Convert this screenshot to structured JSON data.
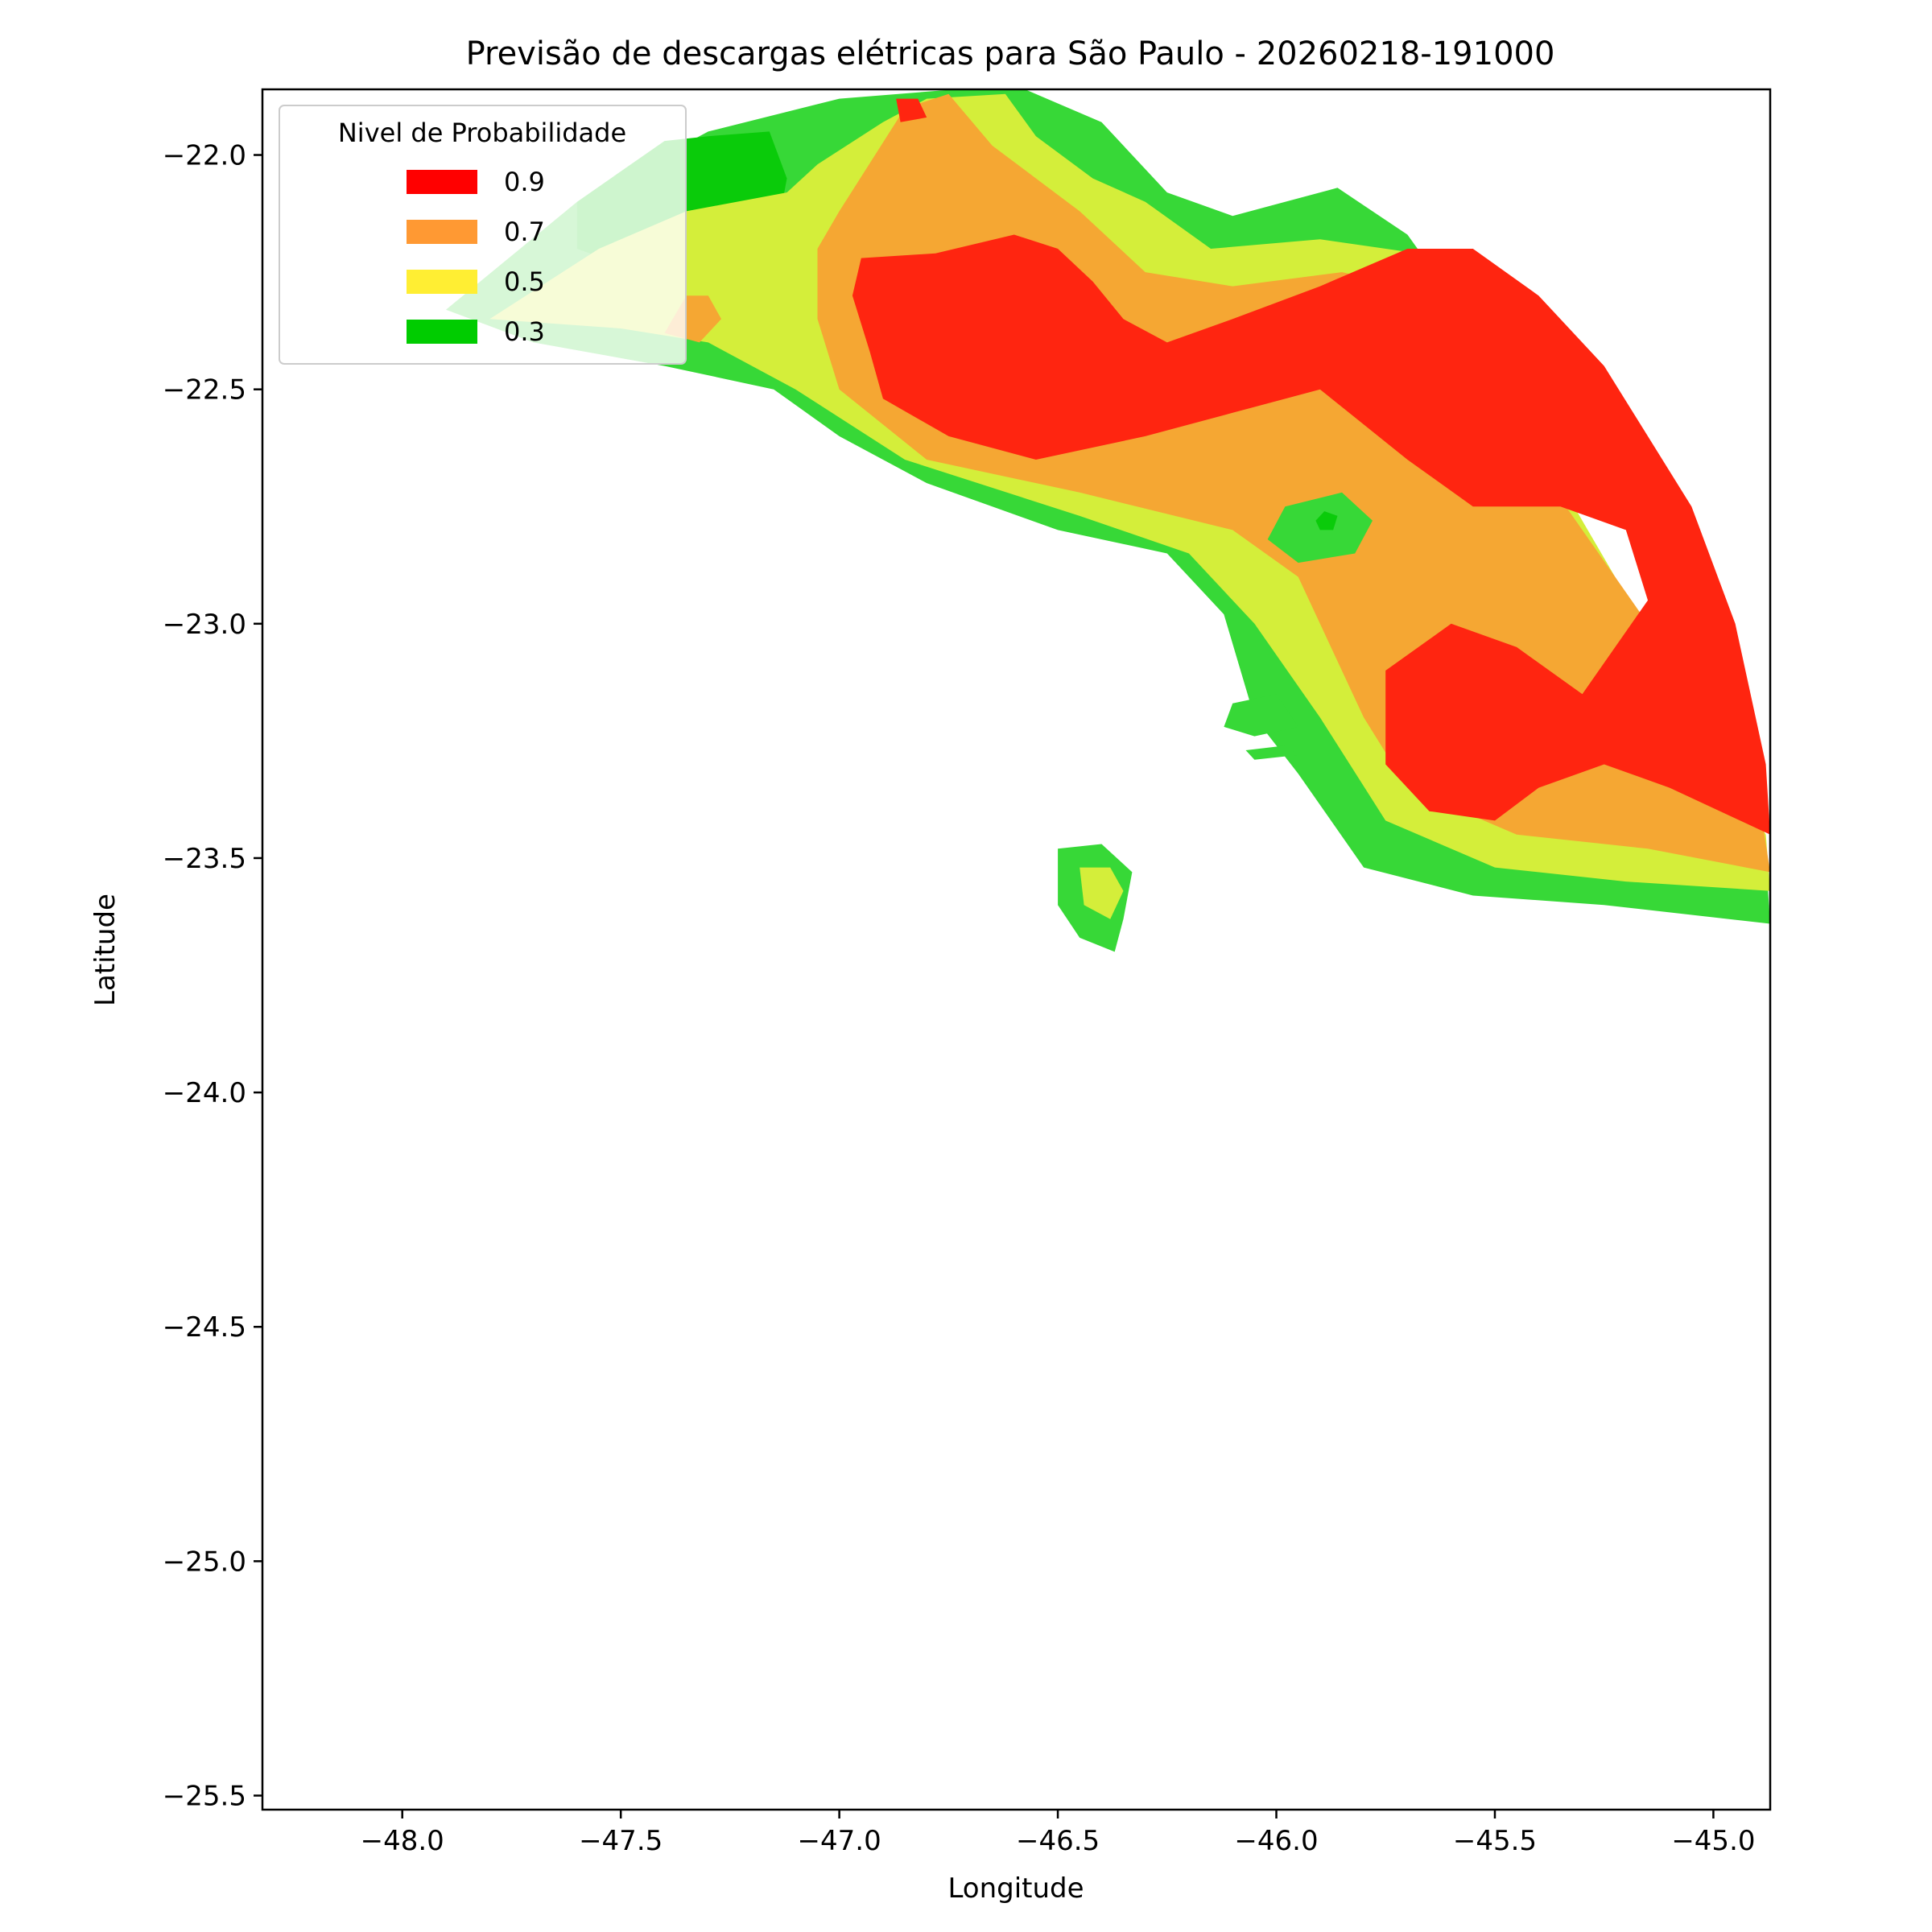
{
  "chart_data": {
    "type": "heatmap",
    "subtype": "filled-contour-map",
    "title": "Previsão de descargas elétricas para São Paulo - 20260218-191000",
    "xlabel": "Longitude",
    "ylabel": "Latitude",
    "xlim": [
      -48.32,
      -44.87
    ],
    "ylim": [
      -25.53,
      -21.86
    ],
    "x_ticks": [
      -48.0,
      -47.5,
      -47.0,
      -46.5,
      -46.0,
      -45.5,
      -45.0
    ],
    "y_ticks": [
      -22.0,
      -22.5,
      -23.0,
      -23.5,
      -24.0,
      -24.5,
      -25.0,
      -25.5
    ],
    "x_tick_labels": [
      "−48.0",
      "−47.5",
      "−47.0",
      "−46.5",
      "−46.0",
      "−45.5",
      "−45.0"
    ],
    "y_tick_labels": [
      "−22.0",
      "−22.5",
      "−23.0",
      "−23.5",
      "−24.0",
      "−24.5",
      "−25.0",
      "−25.5"
    ],
    "grid": false,
    "legend": {
      "title": "Nivel de Probabilidade",
      "placement": "upper-left",
      "entries": [
        {
          "label": "0.9",
          "color": "#ff0000"
        },
        {
          "label": "0.7",
          "color": "#ff9933"
        },
        {
          "label": "0.5",
          "color": "#ffee33"
        },
        {
          "label": "0.3",
          "color": "#00cc00"
        }
      ]
    },
    "fill_colors": {
      "0.9": "#ff2510",
      "0.7": "#f5a733",
      "0.5": "#d4ee3a",
      "0.3": "#37d837",
      "0.3-dark": "#0acb0a"
    },
    "regions": [
      {
        "level": "0.3",
        "points": [
          [
            -47.9,
            -22.33
          ],
          [
            -47.6,
            -22.1
          ],
          [
            -47.3,
            -21.95
          ],
          [
            -47.0,
            -21.88
          ],
          [
            -46.6,
            -21.85
          ],
          [
            -46.4,
            -21.93
          ],
          [
            -46.25,
            -22.08
          ],
          [
            -46.1,
            -22.13
          ],
          [
            -45.86,
            -22.07
          ],
          [
            -45.7,
            -22.17
          ],
          [
            -45.6,
            -22.3
          ],
          [
            -45.5,
            -22.5
          ],
          [
            -45.4,
            -22.8
          ],
          [
            -45.1,
            -23.2
          ],
          [
            -44.88,
            -23.5
          ],
          [
            -44.87,
            -23.64
          ],
          [
            -45.25,
            -23.6
          ],
          [
            -45.55,
            -23.58
          ],
          [
            -45.8,
            -23.52
          ],
          [
            -45.95,
            -23.32
          ],
          [
            -46.05,
            -23.2
          ],
          [
            -46.12,
            -22.98
          ],
          [
            -46.25,
            -22.85
          ],
          [
            -46.5,
            -22.8
          ],
          [
            -46.8,
            -22.7
          ],
          [
            -47.0,
            -22.6
          ],
          [
            -47.15,
            -22.5
          ],
          [
            -47.4,
            -22.45
          ],
          [
            -47.7,
            -22.4
          ]
        ]
      },
      {
        "level": "0.3",
        "points": [
          [
            -46.5,
            -23.48
          ],
          [
            -46.4,
            -23.47
          ],
          [
            -46.33,
            -23.53
          ],
          [
            -46.35,
            -23.63
          ],
          [
            -46.37,
            -23.7
          ],
          [
            -46.45,
            -23.67
          ],
          [
            -46.5,
            -23.6
          ]
        ]
      },
      {
        "level": "0.3",
        "points": [
          [
            -46.1,
            -23.17
          ],
          [
            -46.0,
            -23.15
          ],
          [
            -45.95,
            -23.22
          ],
          [
            -46.05,
            -23.24
          ],
          [
            -46.12,
            -23.22
          ]
        ]
      },
      {
        "level": "0.3",
        "points": [
          [
            -46.07,
            -23.27
          ],
          [
            -45.98,
            -23.26
          ],
          [
            -45.95,
            -23.28
          ],
          [
            -46.05,
            -23.29
          ]
        ]
      },
      {
        "level": "0.3-dark",
        "points": [
          [
            -47.6,
            -22.1
          ],
          [
            -47.4,
            -21.97
          ],
          [
            -47.3,
            -21.96
          ],
          [
            -47.16,
            -21.95
          ],
          [
            -47.12,
            -22.05
          ],
          [
            -47.15,
            -22.2
          ],
          [
            -47.3,
            -22.25
          ],
          [
            -47.45,
            -22.25
          ],
          [
            -47.6,
            -22.2
          ]
        ]
      },
      {
        "level": "0.5",
        "points": [
          [
            -47.8,
            -22.35
          ],
          [
            -47.55,
            -22.2
          ],
          [
            -47.35,
            -22.12
          ],
          [
            -47.12,
            -22.08
          ],
          [
            -47.05,
            -22.02
          ],
          [
            -46.9,
            -21.93
          ],
          [
            -46.8,
            -21.88
          ],
          [
            -46.62,
            -21.87
          ],
          [
            -46.55,
            -21.96
          ],
          [
            -46.42,
            -22.05
          ],
          [
            -46.3,
            -22.1
          ],
          [
            -46.15,
            -22.2
          ],
          [
            -45.9,
            -22.18
          ],
          [
            -45.6,
            -22.22
          ],
          [
            -45.5,
            -22.4
          ],
          [
            -45.35,
            -22.7
          ],
          [
            -45.1,
            -23.1
          ],
          [
            -44.88,
            -23.45
          ],
          [
            -44.87,
            -23.57
          ],
          [
            -45.2,
            -23.55
          ],
          [
            -45.5,
            -23.52
          ],
          [
            -45.75,
            -23.42
          ],
          [
            -45.9,
            -23.2
          ],
          [
            -46.05,
            -23.0
          ],
          [
            -46.2,
            -22.85
          ],
          [
            -46.45,
            -22.77
          ],
          [
            -46.85,
            -22.65
          ],
          [
            -47.1,
            -22.5
          ],
          [
            -47.3,
            -22.4
          ],
          [
            -47.5,
            -22.37
          ]
        ]
      },
      {
        "level": "0.5",
        "points": [
          [
            -46.45,
            -23.52
          ],
          [
            -46.38,
            -23.52
          ],
          [
            -46.35,
            -23.57
          ],
          [
            -46.38,
            -23.63
          ],
          [
            -46.44,
            -23.6
          ]
        ]
      },
      {
        "level": "0.7",
        "points": [
          [
            -47.35,
            -22.3
          ],
          [
            -47.3,
            -22.3
          ],
          [
            -47.27,
            -22.35
          ],
          [
            -47.32,
            -22.4
          ],
          [
            -47.4,
            -22.38
          ]
        ]
      },
      {
        "level": "0.7",
        "points": [
          [
            -47.05,
            -22.2
          ],
          [
            -47.0,
            -22.12
          ],
          [
            -46.85,
            -21.9
          ],
          [
            -46.75,
            -21.87
          ],
          [
            -46.65,
            -21.98
          ],
          [
            -46.55,
            -22.05
          ],
          [
            -46.45,
            -22.12
          ],
          [
            -46.3,
            -22.25
          ],
          [
            -46.1,
            -22.28
          ],
          [
            -45.85,
            -22.25
          ],
          [
            -45.6,
            -22.3
          ],
          [
            -45.5,
            -22.45
          ],
          [
            -45.45,
            -22.6
          ],
          [
            -45.3,
            -22.8
          ],
          [
            -45.15,
            -23.0
          ],
          [
            -44.9,
            -23.35
          ],
          [
            -44.87,
            -23.53
          ],
          [
            -45.15,
            -23.48
          ],
          [
            -45.45,
            -23.45
          ],
          [
            -45.7,
            -23.35
          ],
          [
            -45.8,
            -23.2
          ],
          [
            -45.9,
            -23.0
          ],
          [
            -45.95,
            -22.9
          ],
          [
            -46.1,
            -22.8
          ],
          [
            -46.45,
            -22.72
          ],
          [
            -46.8,
            -22.65
          ],
          [
            -47.0,
            -22.5
          ],
          [
            -47.05,
            -22.35
          ]
        ]
      },
      {
        "level": "0.9",
        "points": [
          [
            -46.97,
            -22.3
          ],
          [
            -46.95,
            -22.22
          ],
          [
            -46.78,
            -22.21
          ],
          [
            -46.6,
            -22.17
          ],
          [
            -46.5,
            -22.2
          ],
          [
            -46.42,
            -22.27
          ],
          [
            -46.35,
            -22.35
          ],
          [
            -46.25,
            -22.4
          ],
          [
            -46.1,
            -22.35
          ],
          [
            -45.9,
            -22.28
          ],
          [
            -45.7,
            -22.2
          ],
          [
            -45.55,
            -22.2
          ],
          [
            -45.4,
            -22.3
          ],
          [
            -45.25,
            -22.45
          ],
          [
            -45.15,
            -22.6
          ],
          [
            -45.05,
            -22.75
          ],
          [
            -44.95,
            -23.0
          ],
          [
            -44.88,
            -23.3
          ],
          [
            -44.87,
            -23.45
          ],
          [
            -45.1,
            -23.35
          ],
          [
            -45.25,
            -23.3
          ],
          [
            -45.4,
            -23.35
          ],
          [
            -45.5,
            -23.42
          ],
          [
            -45.65,
            -23.4
          ],
          [
            -45.75,
            -23.3
          ],
          [
            -45.75,
            -23.1
          ],
          [
            -45.6,
            -23.0
          ],
          [
            -45.45,
            -23.05
          ],
          [
            -45.3,
            -23.15
          ],
          [
            -45.15,
            -22.95
          ],
          [
            -45.2,
            -22.8
          ],
          [
            -45.35,
            -22.75
          ],
          [
            -45.55,
            -22.75
          ],
          [
            -45.7,
            -22.65
          ],
          [
            -45.9,
            -22.5
          ],
          [
            -46.1,
            -22.55
          ],
          [
            -46.3,
            -22.6
          ],
          [
            -46.55,
            -22.65
          ],
          [
            -46.75,
            -22.6
          ],
          [
            -46.9,
            -22.52
          ],
          [
            -46.93,
            -22.42
          ]
        ]
      },
      {
        "level": "0.9",
        "points": [
          [
            -46.87,
            -21.88
          ],
          [
            -46.82,
            -21.88
          ],
          [
            -46.8,
            -21.92
          ],
          [
            -46.86,
            -21.93
          ]
        ]
      },
      {
        "level": "0.3",
        "points": [
          [
            -45.98,
            -22.75
          ],
          [
            -45.85,
            -22.72
          ],
          [
            -45.78,
            -22.78
          ],
          [
            -45.82,
            -22.85
          ],
          [
            -45.95,
            -22.87
          ],
          [
            -46.02,
            -22.82
          ]
        ]
      },
      {
        "level": "0.3-dark",
        "points": [
          [
            -45.91,
            -22.78
          ],
          [
            -45.89,
            -22.76
          ],
          [
            -45.86,
            -22.77
          ],
          [
            -45.87,
            -22.8
          ],
          [
            -45.9,
            -22.8
          ]
        ]
      }
    ]
  }
}
